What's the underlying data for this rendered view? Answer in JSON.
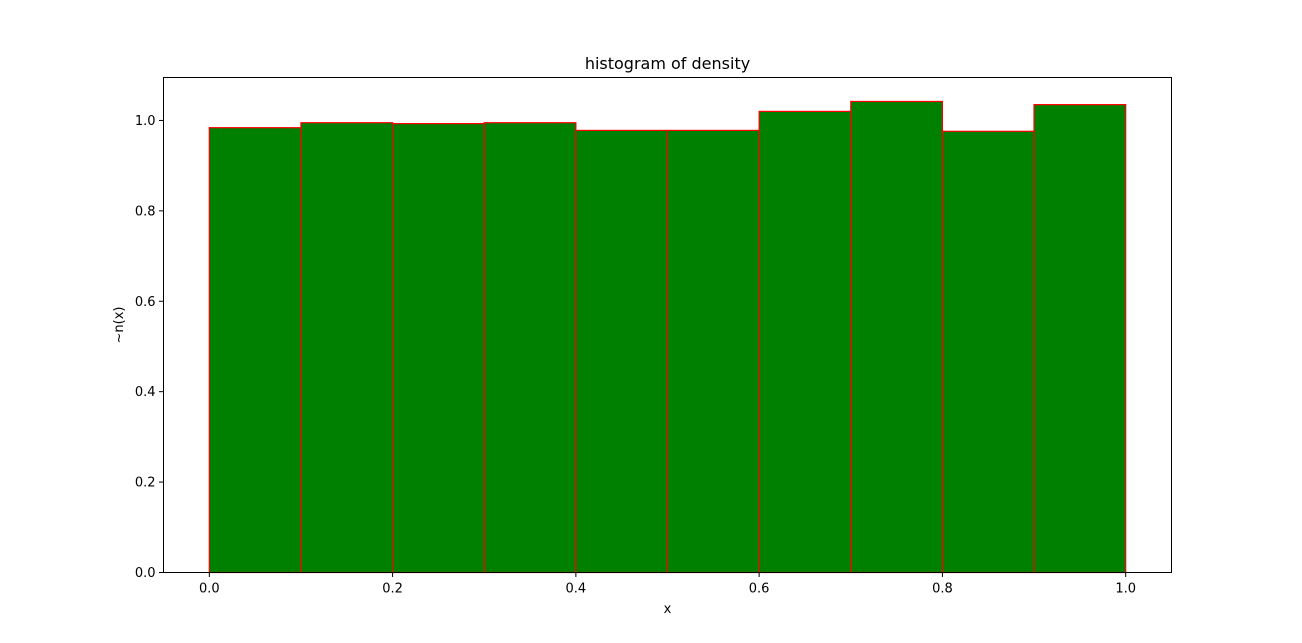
{
  "chart_data": {
    "type": "bar",
    "title": "histogram of density",
    "xlabel": "x",
    "ylabel": "~n(x)",
    "bin_edges": [
      0.0,
      0.1,
      0.2,
      0.3,
      0.4,
      0.5,
      0.6,
      0.7,
      0.8,
      0.9,
      1.0
    ],
    "values": [
      0.984,
      0.995,
      0.993,
      0.995,
      0.978,
      0.978,
      1.02,
      1.042,
      0.976,
      1.035
    ],
    "xlim": [
      -0.05,
      1.05
    ],
    "ylim": [
      0.0,
      1.095
    ],
    "x_ticks": [
      0.0,
      0.2,
      0.4,
      0.6,
      0.8,
      1.0
    ],
    "x_tick_labels": [
      "0.0",
      "0.2",
      "0.4",
      "0.6",
      "0.8",
      "1.0"
    ],
    "y_ticks": [
      0.0,
      0.2,
      0.4,
      0.6,
      0.8,
      1.0
    ],
    "y_tick_labels": [
      "0.0",
      "0.2",
      "0.4",
      "0.6",
      "0.8",
      "1.0"
    ],
    "grid": false,
    "legend": "none",
    "colors": {
      "bar_fill": "#008000",
      "bar_edge": "#ff0000",
      "axes": "#000000",
      "background": "#ffffff"
    }
  }
}
